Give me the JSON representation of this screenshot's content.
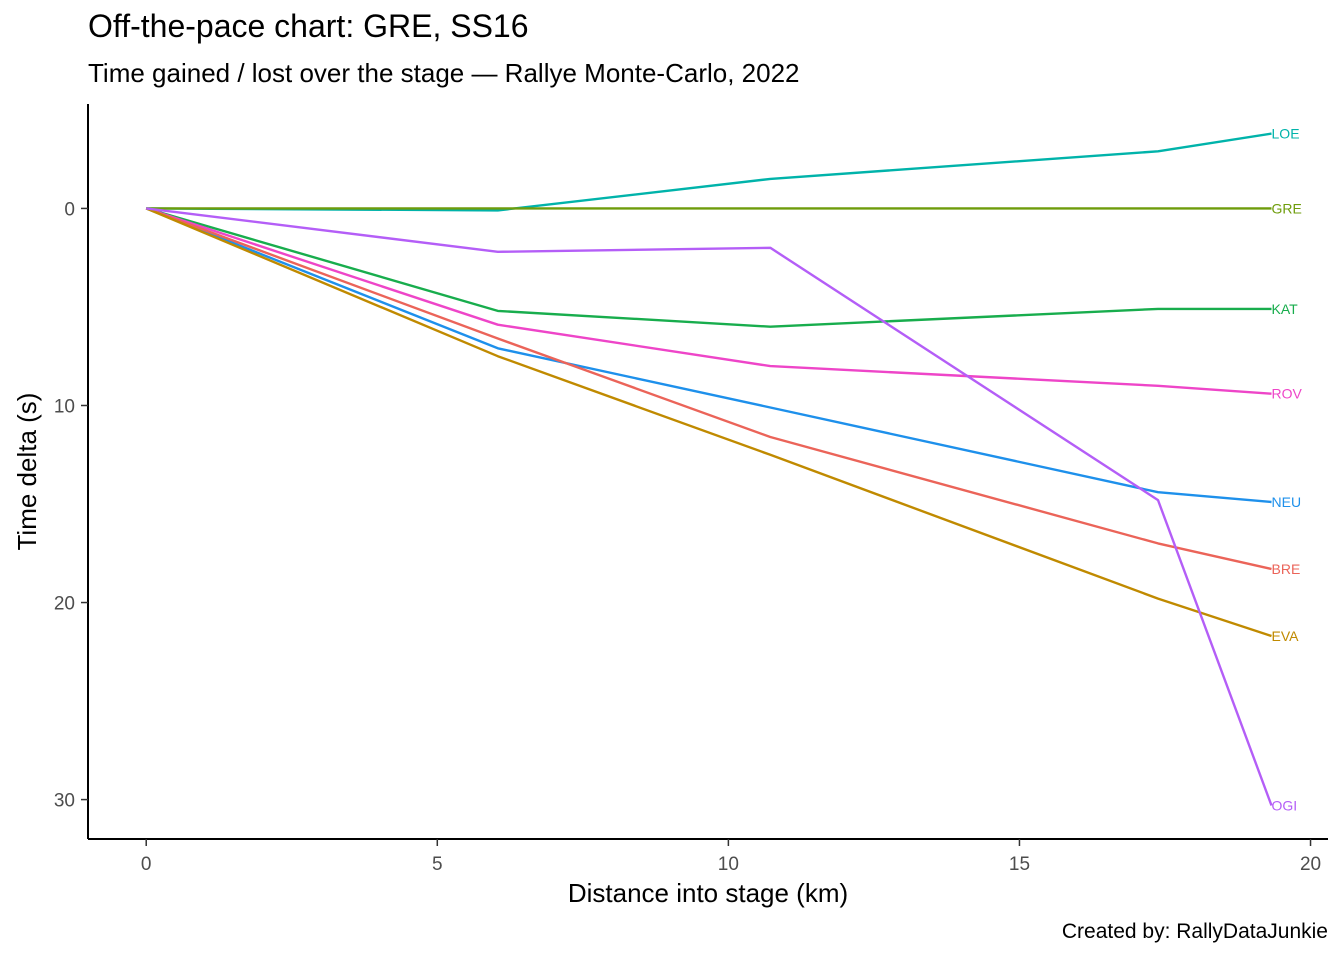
{
  "title": "Off-the-pace chart: GRE, SS16",
  "subtitle": "Time gained / lost over the stage — Rallye Monte-Carlo, 2022",
  "caption": "Created by: RallyDataJunkie",
  "chart_data": {
    "type": "line",
    "title": "Off-the-pace chart: GRE, SS16",
    "subtitle": "Time gained / lost over the stage — Rallye Monte-Carlo, 2022",
    "xlabel": "Distance into stage (km)",
    "ylabel": "Time delta (s)",
    "xlim": [
      -1,
      20.3
    ],
    "ylim": [
      32,
      -5.3
    ],
    "y_reversed": true,
    "xticks": [
      0,
      5,
      10,
      15,
      20
    ],
    "yticks": [
      0,
      10,
      20,
      30
    ],
    "grid": false,
    "legend": "none (series labels at line ends)",
    "x": [
      0,
      6.04,
      10.72,
      17.38,
      19.33
    ],
    "series": [
      {
        "name": "LOE",
        "color": "#00B3AA",
        "values": [
          0,
          0.1,
          -1.5,
          -2.9,
          -3.8
        ]
      },
      {
        "name": "GRE",
        "color": "#6E9C0B",
        "values": [
          0,
          0,
          0,
          0,
          0
        ]
      },
      {
        "name": "KAT",
        "color": "#18AD4D",
        "values": [
          0,
          5.2,
          6.0,
          5.1,
          5.1
        ]
      },
      {
        "name": "ROV",
        "color": "#EE45C8",
        "values": [
          0,
          5.9,
          8.0,
          9.0,
          9.4
        ]
      },
      {
        "name": "NEU",
        "color": "#1E90EB",
        "values": [
          0,
          7.1,
          10.1,
          14.4,
          14.9
        ]
      },
      {
        "name": "BRE",
        "color": "#EB6459",
        "values": [
          0,
          6.6,
          11.6,
          17.0,
          18.3
        ]
      },
      {
        "name": "EVA",
        "color": "#C08A00",
        "values": [
          0,
          7.5,
          12.5,
          19.8,
          21.7
        ]
      },
      {
        "name": "OGI",
        "color": "#B45EF7",
        "values": [
          0,
          2.2,
          2.0,
          14.8,
          30.3
        ]
      }
    ]
  }
}
